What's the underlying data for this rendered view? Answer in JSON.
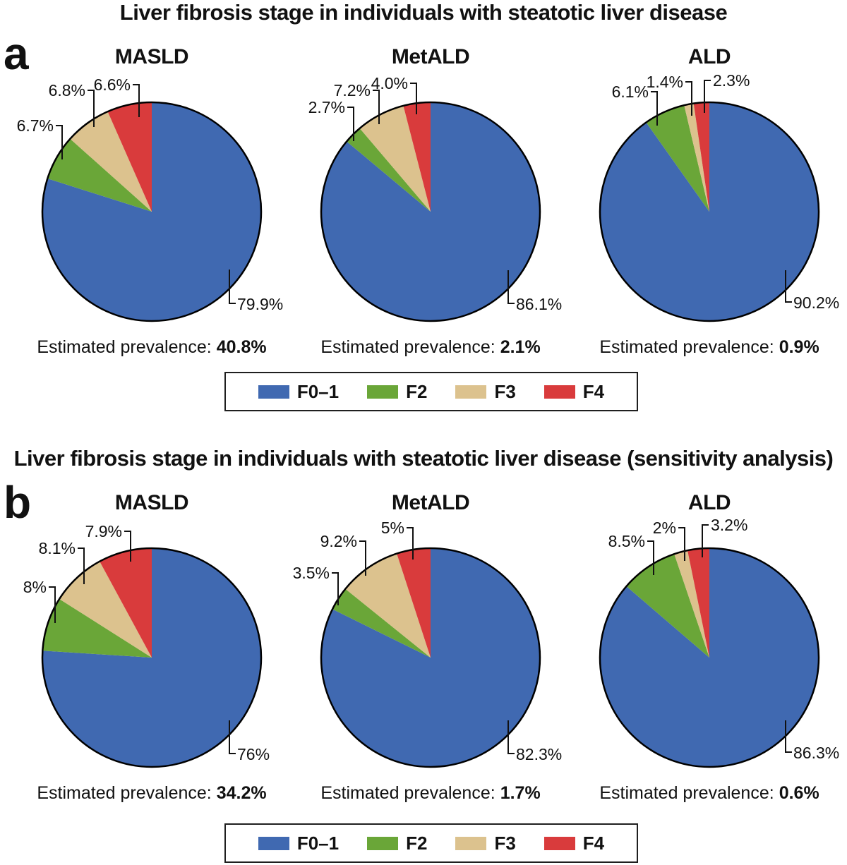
{
  "prevalence_prefix": "Estimated prevalence:",
  "panels": [
    {
      "letter": "a",
      "title": "Liver fibrosis stage in individuals with steatotic liver disease"
    },
    {
      "letter": "b",
      "title": "Liver fibrosis stage in individuals with steatotic liver disease (sensitivity analysis)"
    }
  ],
  "legend": {
    "items": [
      {
        "label": "F0–1",
        "color": "#4069b1"
      },
      {
        "label": "F2",
        "color": "#6aa638"
      },
      {
        "label": "F3",
        "color": "#dcc28e"
      },
      {
        "label": "F4",
        "color": "#d93b3c"
      }
    ]
  },
  "chart_data": [
    {
      "type": "pie",
      "panel": "a",
      "title": "MASLD",
      "categories": [
        "F0–1",
        "F2",
        "F3",
        "F4"
      ],
      "values": [
        79.9,
        6.7,
        6.8,
        6.6
      ],
      "display_labels": [
        "79.9%",
        "6.7%",
        "6.8%",
        "6.6%"
      ],
      "colors": [
        "#4069b1",
        "#6aa638",
        "#dcc28e",
        "#d93b3c"
      ],
      "estimated_prevalence": "40.8%"
    },
    {
      "type": "pie",
      "panel": "a",
      "title": "MetALD",
      "categories": [
        "F0–1",
        "F2",
        "F3",
        "F4"
      ],
      "values": [
        86.1,
        2.7,
        7.2,
        4.0
      ],
      "display_labels": [
        "86.1%",
        "2.7%",
        "7.2%",
        "4.0%"
      ],
      "colors": [
        "#4069b1",
        "#6aa638",
        "#dcc28e",
        "#d93b3c"
      ],
      "estimated_prevalence": "2.1%"
    },
    {
      "type": "pie",
      "panel": "a",
      "title": "ALD",
      "categories": [
        "F0–1",
        "F2",
        "F3",
        "F4"
      ],
      "values": [
        90.2,
        6.1,
        1.4,
        2.3
      ],
      "display_labels": [
        "90.2%",
        "6.1%",
        "1.4%",
        "2.3%"
      ],
      "colors": [
        "#4069b1",
        "#6aa638",
        "#dcc28e",
        "#d93b3c"
      ],
      "estimated_prevalence": "0.9%"
    },
    {
      "type": "pie",
      "panel": "b",
      "title": "MASLD",
      "categories": [
        "F0–1",
        "F2",
        "F3",
        "F4"
      ],
      "values": [
        76,
        8,
        8.1,
        7.9
      ],
      "display_labels": [
        "76%",
        "8%",
        "8.1%",
        "7.9%"
      ],
      "colors": [
        "#4069b1",
        "#6aa638",
        "#dcc28e",
        "#d93b3c"
      ],
      "estimated_prevalence": "34.2%"
    },
    {
      "type": "pie",
      "panel": "b",
      "title": "MetALD",
      "categories": [
        "F0–1",
        "F2",
        "F3",
        "F4"
      ],
      "values": [
        82.3,
        3.5,
        9.2,
        5
      ],
      "display_labels": [
        "82.3%",
        "3.5%",
        "9.2%",
        "5%"
      ],
      "colors": [
        "#4069b1",
        "#6aa638",
        "#dcc28e",
        "#d93b3c"
      ],
      "estimated_prevalence": "1.7%"
    },
    {
      "type": "pie",
      "panel": "b",
      "title": "ALD",
      "categories": [
        "F0–1",
        "F2",
        "F3",
        "F4"
      ],
      "values": [
        86.3,
        8.5,
        2,
        3.2
      ],
      "display_labels": [
        "86.3%",
        "8.5%",
        "2%",
        "3.2%"
      ],
      "colors": [
        "#4069b1",
        "#6aa638",
        "#dcc28e",
        "#d93b3c"
      ],
      "estimated_prevalence": "0.6%"
    }
  ]
}
